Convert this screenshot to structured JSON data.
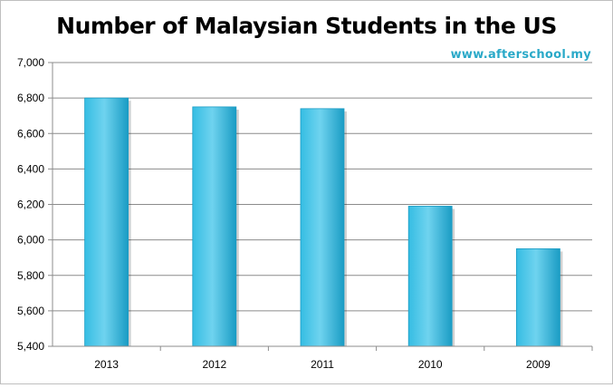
{
  "chart_data": {
    "type": "bar",
    "title": "Number of Malaysian Students in the US",
    "watermark": "www.afterschool.my",
    "categories": [
      "2013",
      "2012",
      "2011",
      "2010",
      "2009"
    ],
    "values": [
      6800,
      6750,
      6740,
      6190,
      5950
    ],
    "xlabel": "",
    "ylabel": "",
    "ylim": [
      5400,
      7000
    ],
    "yticks": [
      5400,
      5600,
      5800,
      6000,
      6200,
      6400,
      6600,
      6800,
      7000
    ],
    "ytick_labels": [
      "5,400",
      "5,600",
      "5,800",
      "6,000",
      "6,200",
      "6,400",
      "6,600",
      "6,800",
      "7,000"
    ],
    "grid": true,
    "legend": "none"
  },
  "colors": {
    "bar_light": "#6fd3ef",
    "bar_mid": "#35bde3",
    "bar_dark": "#1a9cc4",
    "gridline": "#8c8c8c",
    "axis": "#8c8c8c",
    "watermark": "#2aa9c8"
  }
}
